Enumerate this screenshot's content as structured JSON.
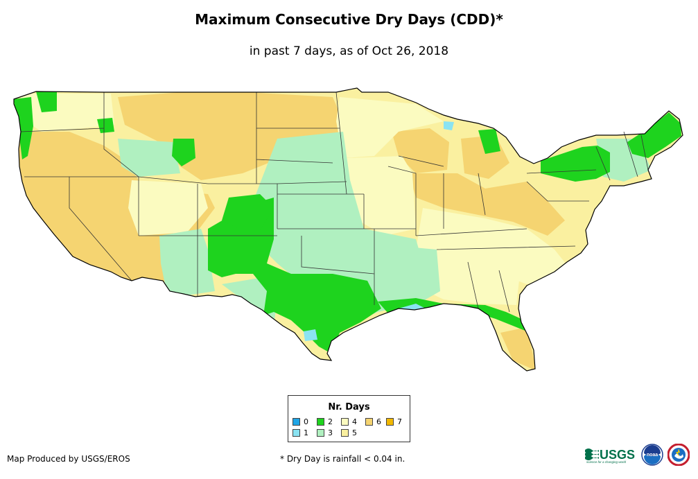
{
  "title": "Maximum Consecutive Dry Days (CDD)*",
  "subtitle": "in past 7 days, as of Oct 26, 2018",
  "legend": {
    "title": "Nr. Days",
    "items": [
      {
        "label": "0",
        "color": "#1fa5e6"
      },
      {
        "label": "1",
        "color": "#8ae3f2"
      },
      {
        "label": "2",
        "color": "#1ed31e"
      },
      {
        "label": "3",
        "color": "#b0f0c0"
      },
      {
        "label": "4",
        "color": "#fbfbc0"
      },
      {
        "label": "5",
        "color": "#faf0a0"
      },
      {
        "label": "6",
        "color": "#f5d471"
      },
      {
        "label": "7",
        "color": "#f2b800"
      }
    ]
  },
  "credit": "Map Produced by USGS/EROS",
  "footnote": "* Dry Day is rainfall < 0.04 in.",
  "logos": {
    "usgs_text": "USGS",
    "usgs_tagline": "science for a changing world",
    "noaa_text": "noaa"
  }
}
